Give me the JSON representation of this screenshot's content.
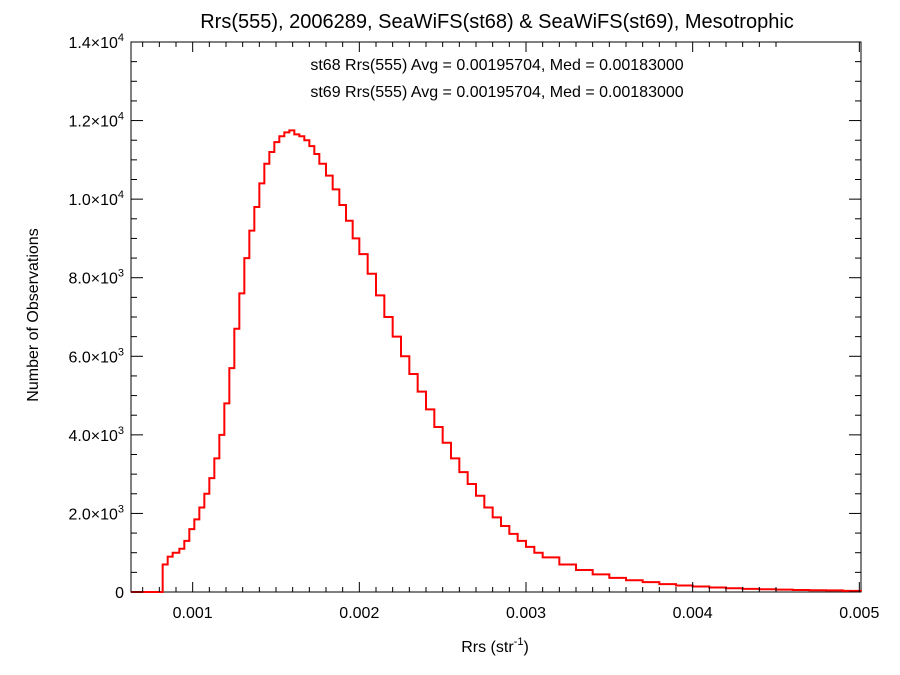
{
  "chart_data": {
    "type": "line",
    "title": "Rrs(555), 2006289, SeaWiFS(st68) & SeaWiFS(st69), Mesotrophic",
    "xlabel": "Rrs (str",
    "xlabel_sup": "-1",
    "xlabel_close": ")",
    "ylabel": "Number of Observations",
    "xlim": [
      0.00063,
      0.00501
    ],
    "ylim": [
      0,
      14000
    ],
    "x_ticks": [
      0.001,
      0.002,
      0.003,
      0.004,
      0.005
    ],
    "x_tick_labels": [
      "0.001",
      "0.002",
      "0.003",
      "0.004",
      "0.005"
    ],
    "y_ticks": [
      {
        "value": 0,
        "mantissa": "0",
        "exp": ""
      },
      {
        "value": 2000,
        "mantissa": "2.0×10",
        "exp": "3"
      },
      {
        "value": 4000,
        "mantissa": "4.0×10",
        "exp": "3"
      },
      {
        "value": 6000,
        "mantissa": "6.0×10",
        "exp": "3"
      },
      {
        "value": 8000,
        "mantissa": "8.0×10",
        "exp": "3"
      },
      {
        "value": 10000,
        "mantissa": "1.0×10",
        "exp": "4"
      },
      {
        "value": 12000,
        "mantissa": "1.2×10",
        "exp": "4"
      },
      {
        "value": 14000,
        "mantissa": "1.4×10",
        "exp": "4"
      }
    ],
    "annotations": [
      {
        "text": "st68 Rrs(555) Avg = 0.00195704, Med = 0.00183000",
        "color": "#000000"
      },
      {
        "text": "st69 Rrs(555) Avg = 0.00195704, Med = 0.00183000",
        "color": "#ff0000"
      }
    ],
    "series": [
      {
        "color": "#ff0000",
        "style": "step",
        "points": [
          [
            0.00063,
            0
          ],
          [
            0.0008,
            0
          ],
          [
            0.00082,
            700
          ],
          [
            0.00085,
            900
          ],
          [
            0.00088,
            1000
          ],
          [
            0.00092,
            1100
          ],
          [
            0.00095,
            1300
          ],
          [
            0.00098,
            1600
          ],
          [
            0.00101,
            1850
          ],
          [
            0.00104,
            2150
          ],
          [
            0.00107,
            2500
          ],
          [
            0.0011,
            2900
          ],
          [
            0.00113,
            3400
          ],
          [
            0.00116,
            4000
          ],
          [
            0.00119,
            4800
          ],
          [
            0.00122,
            5700
          ],
          [
            0.00125,
            6700
          ],
          [
            0.00128,
            7600
          ],
          [
            0.00131,
            8500
          ],
          [
            0.00134,
            9200
          ],
          [
            0.00137,
            9800
          ],
          [
            0.0014,
            10400
          ],
          [
            0.00143,
            10900
          ],
          [
            0.00146,
            11200
          ],
          [
            0.00149,
            11450
          ],
          [
            0.00152,
            11600
          ],
          [
            0.00155,
            11700
          ],
          [
            0.00158,
            11750
          ],
          [
            0.00161,
            11650
          ],
          [
            0.00164,
            11600
          ],
          [
            0.00167,
            11500
          ],
          [
            0.0017,
            11350
          ],
          [
            0.00173,
            11150
          ],
          [
            0.00176,
            10900
          ],
          [
            0.0018,
            10600
          ],
          [
            0.00184,
            10250
          ],
          [
            0.00188,
            9850
          ],
          [
            0.00192,
            9450
          ],
          [
            0.00196,
            9000
          ],
          [
            0.002,
            8600
          ],
          [
            0.00205,
            8100
          ],
          [
            0.0021,
            7550
          ],
          [
            0.00215,
            7000
          ],
          [
            0.0022,
            6500
          ],
          [
            0.00225,
            6000
          ],
          [
            0.0023,
            5550
          ],
          [
            0.00235,
            5100
          ],
          [
            0.0024,
            4650
          ],
          [
            0.00245,
            4200
          ],
          [
            0.0025,
            3800
          ],
          [
            0.00255,
            3400
          ],
          [
            0.0026,
            3050
          ],
          [
            0.00265,
            2750
          ],
          [
            0.0027,
            2450
          ],
          [
            0.00275,
            2150
          ],
          [
            0.0028,
            1900
          ],
          [
            0.00285,
            1680
          ],
          [
            0.0029,
            1480
          ],
          [
            0.00295,
            1300
          ],
          [
            0.003,
            1150
          ],
          [
            0.00305,
            1000
          ],
          [
            0.0031,
            880
          ],
          [
            0.0032,
            700
          ],
          [
            0.0033,
            560
          ],
          [
            0.0034,
            450
          ],
          [
            0.0035,
            360
          ],
          [
            0.0036,
            300
          ],
          [
            0.0037,
            250
          ],
          [
            0.0038,
            200
          ],
          [
            0.0039,
            165
          ],
          [
            0.004,
            140
          ],
          [
            0.0041,
            115
          ],
          [
            0.0042,
            95
          ],
          [
            0.0043,
            80
          ],
          [
            0.0044,
            70
          ],
          [
            0.0045,
            60
          ],
          [
            0.0046,
            50
          ],
          [
            0.0047,
            45
          ],
          [
            0.0048,
            40
          ],
          [
            0.0049,
            30
          ],
          [
            0.00501,
            20
          ]
        ]
      }
    ]
  }
}
